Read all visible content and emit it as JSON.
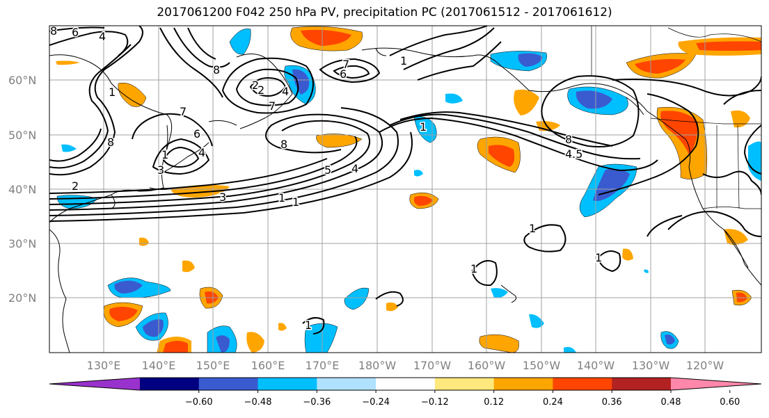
{
  "title": "2017061200 F042 250 hPa PV, precipitation PC (2017061512 - 2017061612)",
  "lat_labels": [
    "60°N",
    "50°N",
    "40°N",
    "30°N",
    "20°N"
  ],
  "lon_labels": [
    "130°E",
    "140°E",
    "150°E",
    "160°E",
    "170°E",
    "180°W",
    "170°W",
    "160°W",
    "150°W",
    "140°W",
    "130°W",
    "120°W"
  ],
  "colorbar": {
    "ticks": [
      "−0.60",
      "−0.48",
      "−0.36",
      "−0.24",
      "−0.12",
      "0.12",
      "0.24",
      "0.36",
      "0.48",
      "0.60"
    ],
    "colors": [
      "#9932cc",
      "#000080",
      "#3a5bd0",
      "#00bfff",
      "#b0e2ff",
      "#ffffff",
      "#ffe87c",
      "#ffa500",
      "#ff4500",
      "#b22222",
      "#ff88aa"
    ]
  },
  "contour_labels": [
    "8",
    "6",
    "4",
    "1",
    "8",
    "2",
    "3",
    "4",
    "7",
    "6",
    "1",
    "2",
    "8",
    "7",
    "8",
    "1",
    "3",
    "4",
    "5",
    "4",
    "1",
    "2",
    "7",
    "6",
    "1",
    "1",
    "8",
    "4.5",
    "1",
    "1",
    "1",
    "1"
  ]
}
